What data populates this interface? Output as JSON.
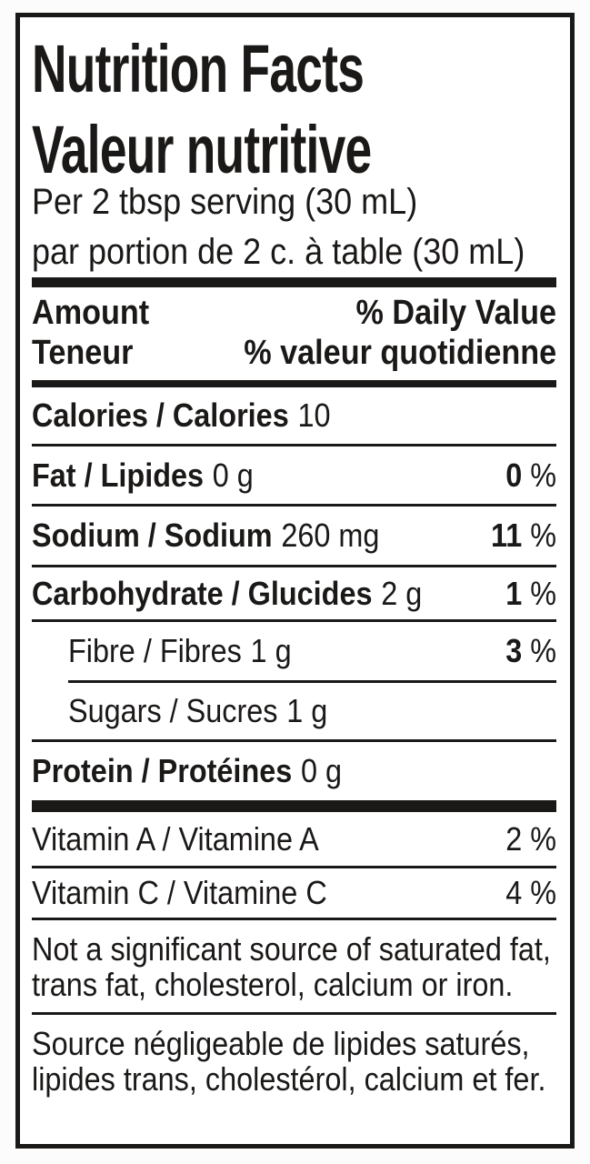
{
  "label": {
    "title_en": "Nutrition Facts",
    "title_fr": "Valeur nutritive",
    "serving_en": "Per 2 tbsp serving (30 mL)",
    "serving_fr": "par portion de 2 c. à table (30 mL)",
    "header": {
      "amount_en": "Amount",
      "amount_fr": "Teneur",
      "dv_en": "% Daily Value",
      "dv_fr": "% valeur quotidienne"
    },
    "calories": {
      "name": "Calories / Calories",
      "value": "10"
    },
    "nutrients": [
      {
        "name": "Fat / Lipides",
        "amount": "0 g",
        "dv": "0",
        "unit": "%"
      },
      {
        "name": "Sodium / Sodium",
        "amount": "260 mg",
        "dv": "11",
        "unit": "%"
      },
      {
        "name": "Carbohydrate / Glucides",
        "amount": "2 g",
        "dv": "1",
        "unit": "%"
      },
      {
        "name": "Fibre / Fibres",
        "amount": "1 g",
        "dv": "3",
        "unit": "%"
      },
      {
        "name": "Sugars / Sucres",
        "amount": "1 g"
      },
      {
        "name": "Protein / Protéines",
        "amount": "0 g"
      }
    ],
    "vitamins": [
      {
        "name": "Vitamin A / Vitamine A",
        "dv": "2",
        "unit": "%"
      },
      {
        "name": "Vitamin C / Vitamine C",
        "dv": "4",
        "unit": "%"
      }
    ],
    "footnote_en": [
      "Not a significant source of saturated fat,",
      "trans fat, cholesterol, calcium or iron."
    ],
    "footnote_fr": [
      "Source négligeable de lipides saturés,",
      "lipides trans, cholestérol, calcium et fer."
    ],
    "colors": {
      "ink": "#1b1917",
      "background": "#ffffff"
    }
  }
}
